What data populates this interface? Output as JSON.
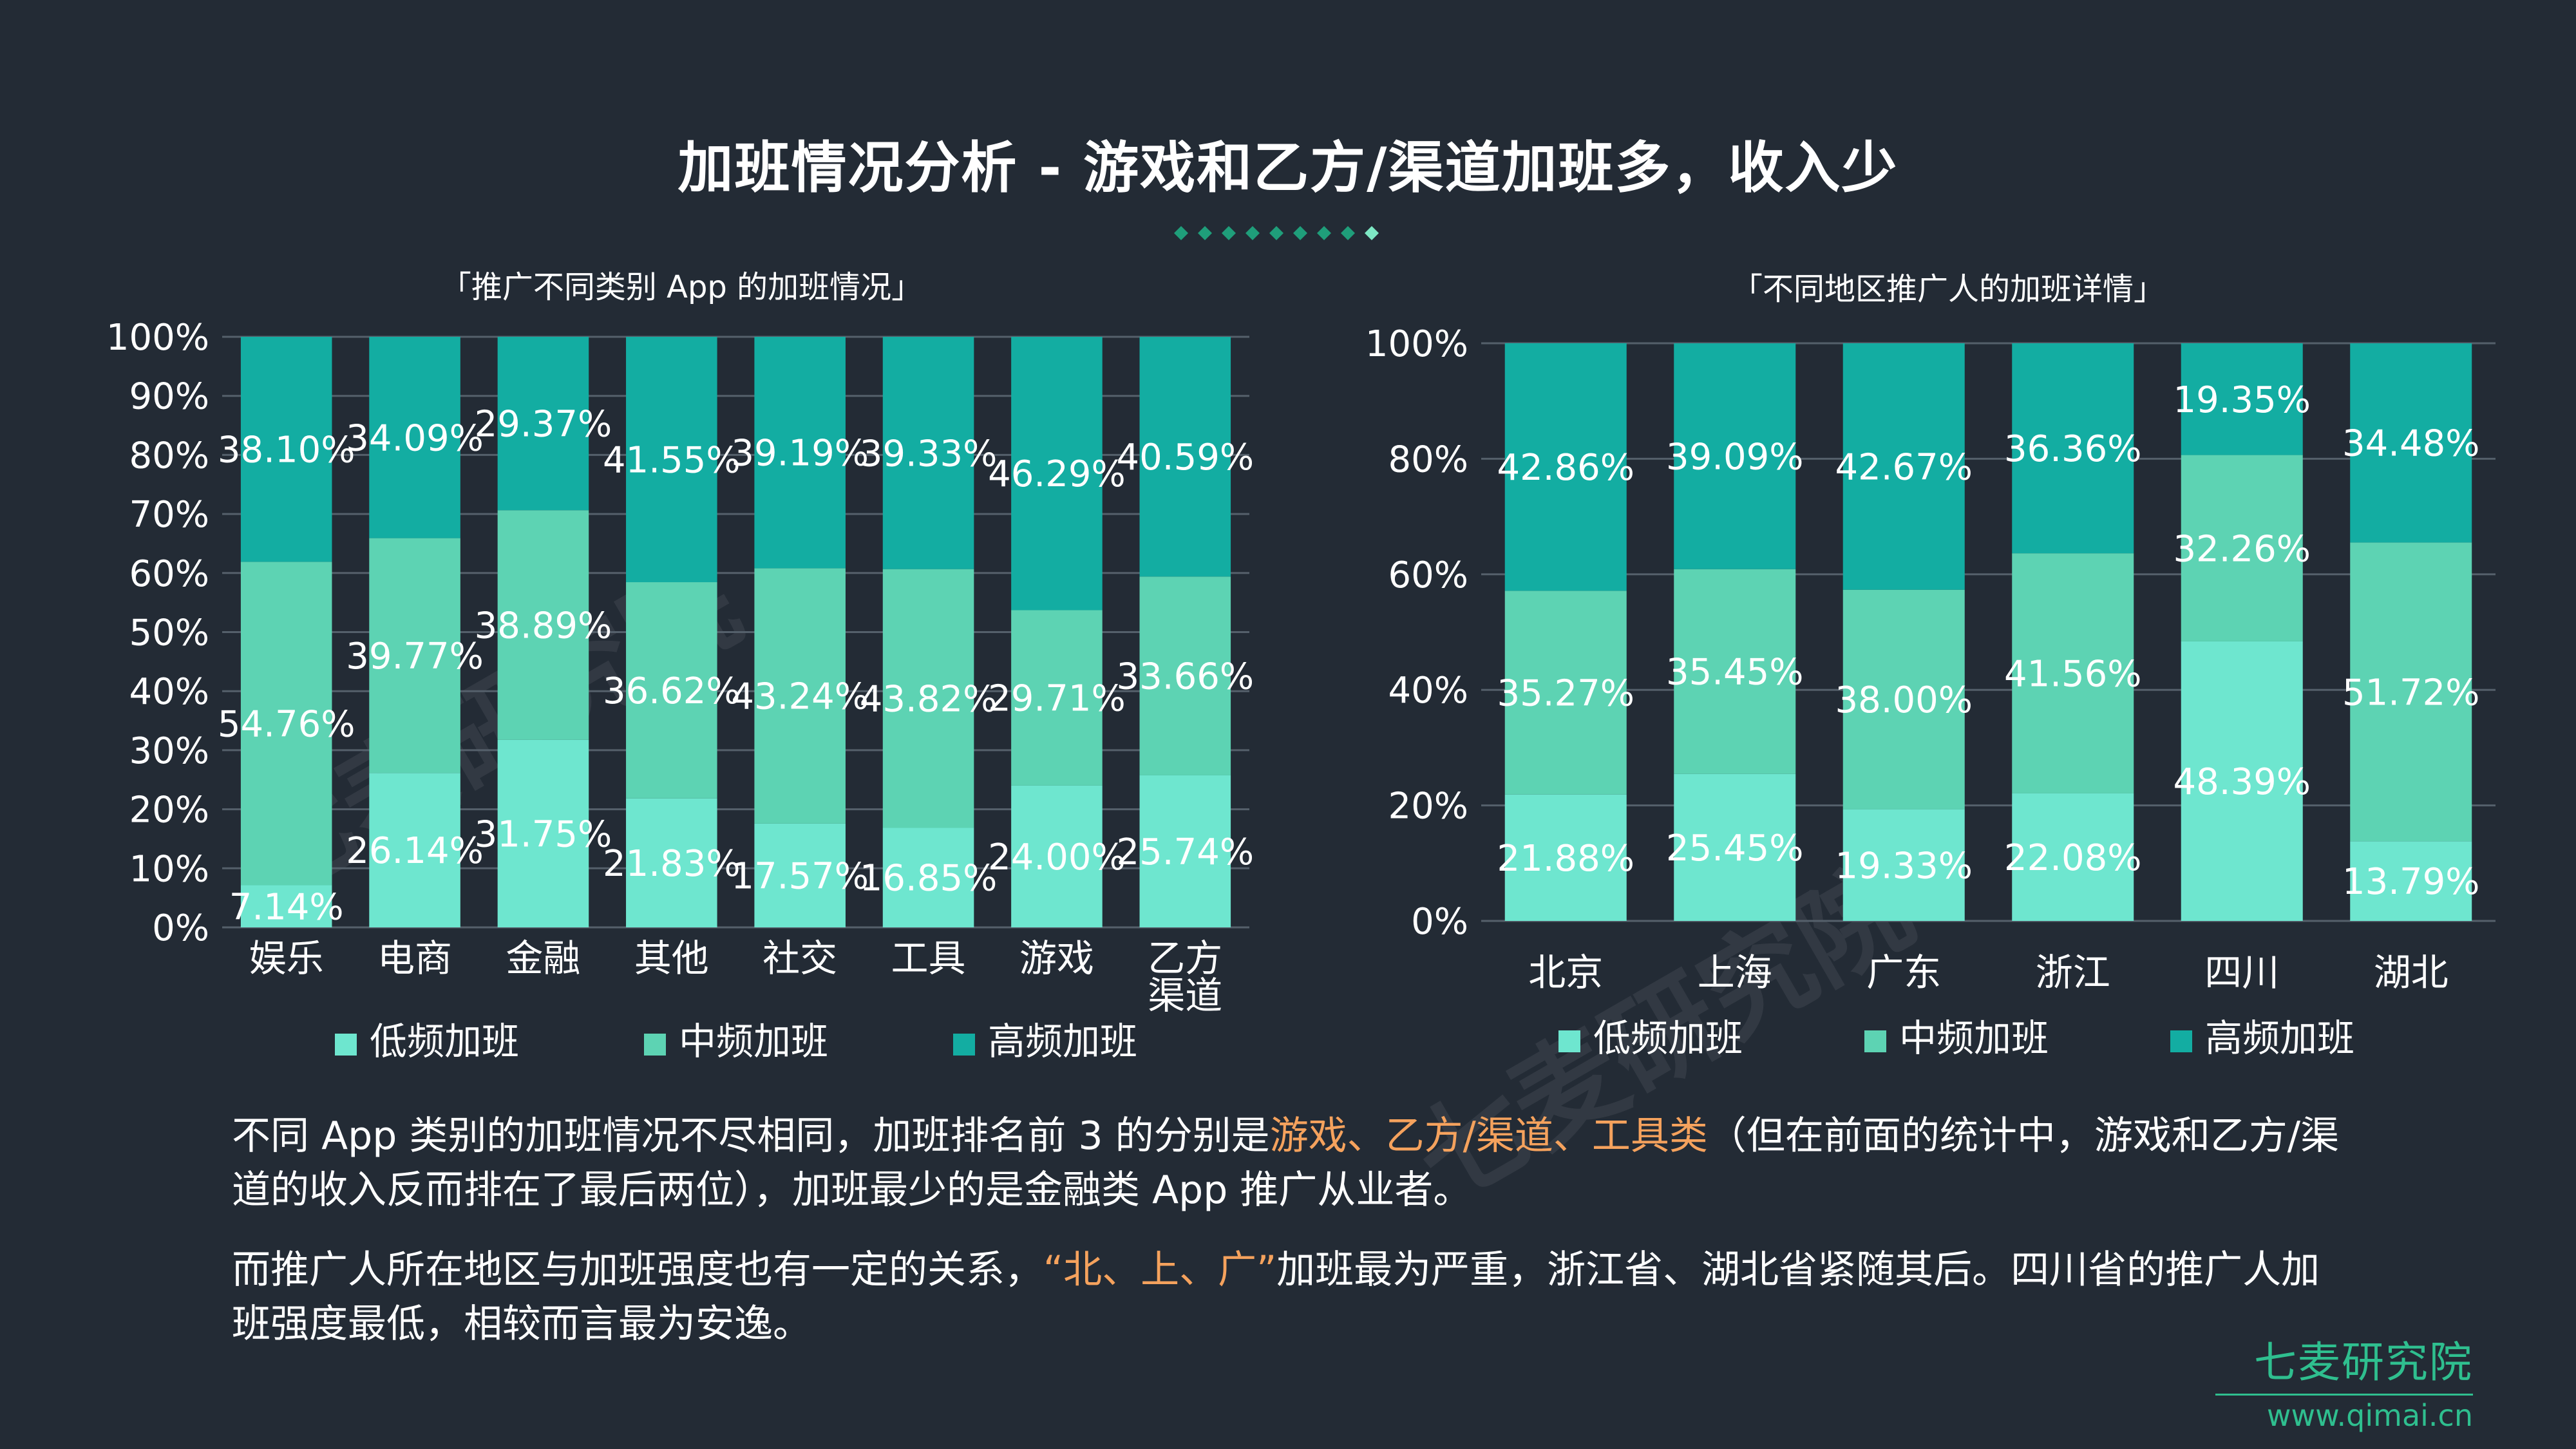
{
  "title": "加班情况分析 - 游戏和乙方/渠道加班多，收入少",
  "colors": {
    "low": "#6ee6cf",
    "mid": "#5dd3b3",
    "high": "#13ada2",
    "highlight": "#f5a25d",
    "brand": "#2fbf8f",
    "grid": "#55606b"
  },
  "chart_data": [
    {
      "type": "bar",
      "stacked": true,
      "title": "「推广不同类别 App 的加班情况」",
      "categories": [
        "娱乐",
        "电商",
        "金融",
        "其他",
        "社交",
        "工具",
        "游戏",
        "乙方\n渠道"
      ],
      "series": [
        {
          "name": "低频加班",
          "values": [
            7.14,
            26.14,
            31.75,
            21.83,
            17.57,
            16.85,
            24.0,
            25.74
          ],
          "labels": [
            "7.14%",
            "26.14%",
            "31.75%",
            "21.83%",
            "17.57%",
            "16.85%",
            "24.00%",
            "25.74%"
          ]
        },
        {
          "name": "中频加班",
          "values": [
            54.76,
            39.77,
            38.89,
            36.62,
            43.24,
            43.82,
            29.71,
            33.66
          ],
          "labels": [
            "54.76%",
            "39.77%",
            "38.89%",
            "36.62%",
            "43.24%",
            "43.82%",
            "29.71%",
            "33.66%"
          ]
        },
        {
          "name": "高频加班",
          "values": [
            38.1,
            34.09,
            29.37,
            41.55,
            39.19,
            39.33,
            46.29,
            40.59
          ],
          "labels": [
            "38.10%",
            "34.09%",
            "29.37%",
            "41.55%",
            "39.19%",
            "39.33%",
            "46.29%",
            "40.59%"
          ]
        }
      ],
      "ylim": [
        0,
        100
      ],
      "yticks": [
        "0%",
        "10%",
        "20%",
        "30%",
        "40%",
        "50%",
        "60%",
        "70%",
        "80%",
        "90%",
        "100%"
      ],
      "legend": "bottom",
      "grid": true
    },
    {
      "type": "bar",
      "stacked": true,
      "title": "「不同地区推广人的加班详情」",
      "categories": [
        "北京",
        "上海",
        "广东",
        "浙江",
        "四川",
        "湖北"
      ],
      "series": [
        {
          "name": "低频加班",
          "values": [
            21.88,
            25.45,
            19.33,
            22.08,
            48.39,
            13.79
          ],
          "labels": [
            "21.88%",
            "25.45%",
            "19.33%",
            "22.08%",
            "48.39%",
            "13.79%"
          ]
        },
        {
          "name": "中频加班",
          "values": [
            35.27,
            35.45,
            38.0,
            41.56,
            32.26,
            51.72
          ],
          "labels": [
            "35.27%",
            "35.45%",
            "38.00%",
            "41.56%",
            "32.26%",
            "51.72%"
          ]
        },
        {
          "name": "高频加班",
          "values": [
            42.86,
            39.09,
            42.67,
            36.36,
            19.35,
            34.48
          ],
          "labels": [
            "42.86%",
            "39.09%",
            "42.67%",
            "36.36%",
            "19.35%",
            "34.48%"
          ]
        }
      ],
      "ylim": [
        0,
        100
      ],
      "yticks": [
        "0%",
        "20%",
        "40%",
        "60%",
        "80%",
        "100%"
      ],
      "legend": "bottom",
      "grid": true
    }
  ],
  "watermarks": [
    "七麦研究院",
    "七麦研究院"
  ],
  "paragraph1": {
    "before": "不同 App 类别的加班情况不尽相同，加班排名前 3 的分别是",
    "highlight": "游戏、乙方/渠道、工具类",
    "after": "（但在前面的统计中，游戏和乙方/渠道的收入反而排在了最后两位），加班最少的是金融类 App 推广从业者。"
  },
  "paragraph2": {
    "before": "而推广人所在地区与加班强度也有一定的关系，",
    "highlight": "“北、上、广”",
    "after": "加班最为严重，浙江省、湖北省紧随其后。四川省的推广人加班强度最低，相较而言最为安逸。"
  },
  "brand": {
    "name": "七麦研究院",
    "url": "www.qimai.cn"
  }
}
